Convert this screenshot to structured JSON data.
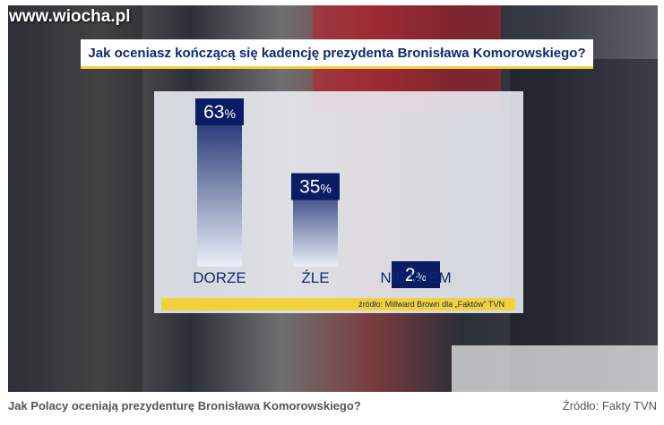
{
  "watermark": "www.wiocha.pl",
  "question": "Jak oceniasz kończącą się kadencję prezydenta Bronisława Komorowskiego?",
  "source_note": "źródło: Millward Brown dla „Faktów” TVN",
  "caption": "Jak Polacy oceniają prezydenturę Bronisława Komorowskiego?",
  "caption_source": "Źródło: Fakty TVN",
  "chart_data": {
    "type": "bar",
    "categories": [
      "DORZE",
      "ŹLE",
      "NIE WIEM"
    ],
    "values": [
      63,
      35,
      2
    ],
    "value_labels": [
      "63",
      "35",
      "2"
    ],
    "unit": "%",
    "title": "Jak oceniasz kończącą się kadencję prezydenta Bronisława Komorowskiego?",
    "xlabel": "",
    "ylabel": "",
    "ylim": [
      0,
      63
    ],
    "grid": false,
    "legend": "none"
  },
  "colors": {
    "bar_top": "#0a1c63",
    "bar_bottom": "#e9eef7",
    "label_box": "#0a1c63",
    "label_text": "#ffffff",
    "category_text": "#0e2a6e",
    "accent_yellow": "#f2d23c"
  }
}
